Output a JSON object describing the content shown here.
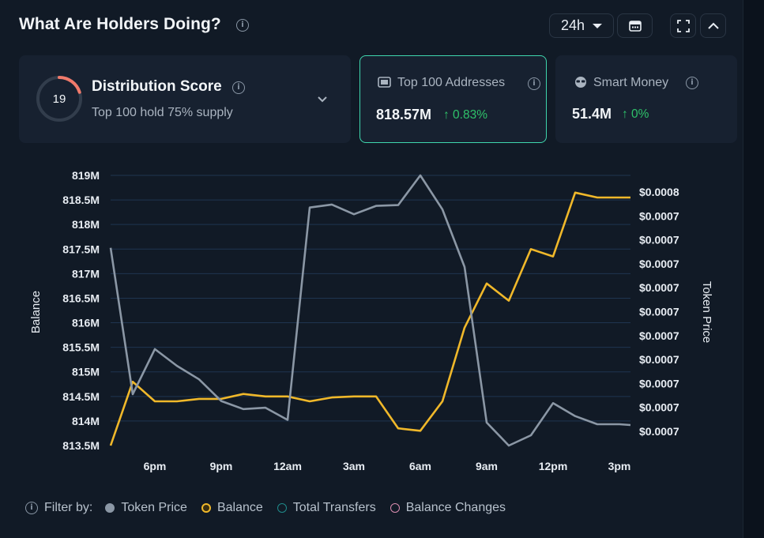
{
  "header": {
    "title": "What Are Holders Doing?",
    "timeframe": "24h"
  },
  "cards": {
    "distribution": {
      "score": "19",
      "title": "Distribution Score",
      "subtitle": "Top 100 hold 75% supply"
    },
    "top100": {
      "label": "Top 100 Addresses",
      "value": "818.57M",
      "change": "↑ 0.83%"
    },
    "smart_money": {
      "label": "Smart Money",
      "value": "51.4M",
      "change": "↑ 0%"
    }
  },
  "legend": {
    "filter_label": "Filter by:",
    "items": [
      "Token Price",
      "Balance",
      "Total Transfers",
      "Balance Changes"
    ]
  },
  "colors": {
    "accent": "#3fd6ad",
    "balance": "#f0b82a",
    "token_price": "#8b97a5",
    "total_transfers": "#1f8a8a",
    "balance_changes": "#d98cb0",
    "positive": "#2fc16a",
    "score_ring": "#f07a6b"
  },
  "chart_data": {
    "type": "line",
    "x_tick_labels": [
      "6pm",
      "9pm",
      "12am",
      "3am",
      "6am",
      "9am",
      "12pm",
      "3pm"
    ],
    "ylabel": "Balance",
    "y2label": "Token Price",
    "y_tick_labels": [
      "813.5M",
      "814M",
      "814.5M",
      "815M",
      "815.5M",
      "816M",
      "816.5M",
      "817M",
      "817.5M",
      "818M",
      "818.5M",
      "819M"
    ],
    "y2_tick_labels": [
      "$0.0007",
      "$0.0007",
      "$0.0007",
      "$0.0007",
      "$0.0007",
      "$0.0007",
      "$0.0007",
      "$0.0007",
      "$0.0007",
      "$0.0007",
      "$0.0008"
    ],
    "ylim": [
      813.5,
      819
    ],
    "y2lim": [
      0,
      1
    ],
    "x_ticks": [
      2,
      5,
      8,
      11,
      14,
      17,
      20,
      23
    ],
    "xlim": [
      0,
      23.5
    ],
    "series": [
      {
        "name": "Balance",
        "axis": "left",
        "x": [
          0,
          1,
          2,
          3,
          4,
          5,
          6,
          7,
          8,
          9,
          10,
          11,
          12,
          13,
          14,
          15,
          16,
          17,
          18,
          19,
          20,
          21,
          22,
          23,
          23.5
        ],
        "values": [
          813.5,
          814.8,
          814.4,
          814.4,
          814.45,
          814.45,
          814.55,
          814.5,
          814.5,
          814.4,
          814.48,
          814.5,
          814.5,
          813.85,
          813.8,
          814.4,
          815.9,
          816.8,
          816.45,
          817.5,
          817.35,
          818.65,
          818.55,
          818.55,
          818.55
        ]
      },
      {
        "name": "Token Price",
        "axis": "right",
        "x": [
          0,
          1,
          2,
          3,
          4,
          5,
          6,
          7,
          8,
          9,
          10,
          11,
          12,
          13,
          14,
          15,
          16,
          17,
          18,
          19,
          20,
          21,
          22,
          23,
          23.5
        ],
        "values": [
          0.732,
          0.19,
          0.357,
          0.295,
          0.245,
          0.165,
          0.135,
          0.14,
          0.095,
          0.881,
          0.892,
          0.856,
          0.887,
          0.89,
          1.0,
          0.874,
          0.661,
          0.085,
          0.0,
          0.038,
          0.157,
          0.109,
          0.079,
          0.079,
          0.076
        ]
      }
    ]
  }
}
